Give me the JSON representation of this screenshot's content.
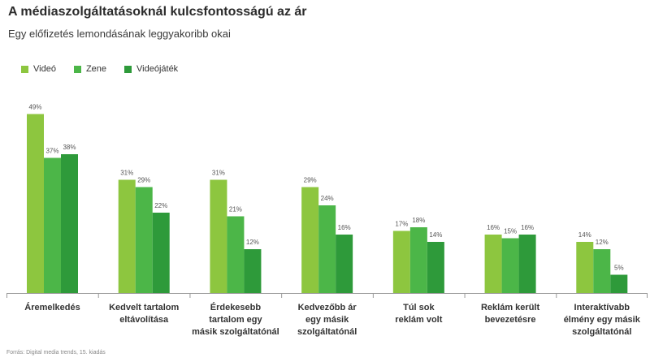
{
  "title": "A médiaszolgáltatásoknál kulcsfontosságú az ár",
  "subtitle": "Egy előfizetés lemondásának leggyakoribb okai",
  "source": "Forrás: Digital media trends, 15. kiadás",
  "colors": {
    "video": "#8dc63f",
    "zene": "#4cb648",
    "videojatek": "#2e9a3a",
    "axis": "#999999",
    "label": "#555555"
  },
  "chart_data": {
    "type": "bar",
    "categories": [
      [
        "Áremelkedés"
      ],
      [
        "Kedvelt tartalom",
        "eltávolítása"
      ],
      [
        "Érdekesebb",
        "tartalom egy",
        "másik szolgáltatónál"
      ],
      [
        "Kedvezőbb ár",
        "egy másik",
        "szolgáltatónál"
      ],
      [
        "Túl sok",
        "reklám volt"
      ],
      [
        "Reklám került",
        "bevezetésre"
      ],
      [
        "Interaktívabb",
        "élmény egy másik",
        "szolgáltatónál"
      ]
    ],
    "series": [
      {
        "name": "Videó",
        "values": [
          49,
          31,
          31,
          29,
          17,
          16,
          14
        ],
        "labels": [
          "49%",
          "31%",
          "31%",
          "29%",
          "17%",
          "16%",
          "14%"
        ]
      },
      {
        "name": "Zene",
        "values": [
          37,
          29,
          21,
          24,
          18,
          15,
          12
        ],
        "labels": [
          "37%",
          "29%",
          "21%",
          "24%",
          "18%",
          "15%",
          "12%"
        ]
      },
      {
        "name": "Videójáték",
        "values": [
          38,
          22,
          12,
          16,
          14,
          16,
          5
        ],
        "labels": [
          "38%",
          "22%",
          "12%",
          "16%",
          "14%",
          "16%",
          "5%"
        ]
      }
    ],
    "ylim": [
      0,
      50
    ],
    "legend": "top-left",
    "grid": false
  }
}
